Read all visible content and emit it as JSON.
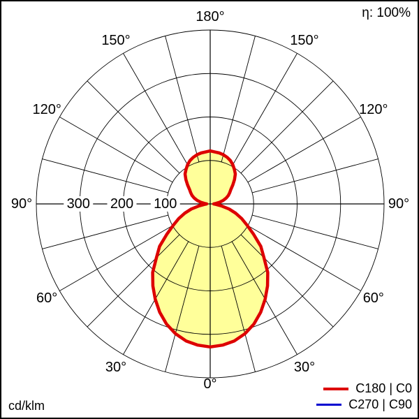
{
  "eta_label": "η: 100%",
  "unit_label": "cd/klm",
  "legend": {
    "items": [
      {
        "label": "C180 | C0",
        "color": "#dd0000"
      },
      {
        "label": "C270 | C90",
        "color": "#0000d0"
      }
    ]
  },
  "chart_data": {
    "type": "polar-photometric",
    "unit": "cd/klm",
    "efficiency_label": "η: 100%",
    "grid_color": "#000000",
    "background_color": "#ffffff",
    "angle_ticks_deg": [
      0,
      30,
      60,
      90,
      120,
      150,
      180
    ],
    "angle_tick_labels": [
      "0°",
      "30°",
      "60°",
      "90°",
      "120°",
      "150°",
      "180°"
    ],
    "labels_mirrored_both_sides": true,
    "spoke_step_deg": 15,
    "radial_ticks": [
      100,
      200,
      300
    ],
    "radial_tick_labels": [
      "100",
      "200",
      "300"
    ],
    "radial_max": 400,
    "series": [
      {
        "name": "C180 | C0",
        "color": "#dd0000",
        "fill": "#ffff9a",
        "symmetric": true,
        "gamma_deg": [
          0,
          5,
          10,
          15,
          20,
          25,
          30,
          35,
          40,
          45,
          50,
          55,
          60,
          65,
          70,
          75,
          80,
          85,
          90,
          95,
          100,
          105,
          110,
          115,
          120,
          125,
          130,
          135,
          140,
          145,
          150,
          155,
          160,
          165,
          170,
          175,
          180
        ],
        "values": [
          329,
          326,
          320,
          309,
          294,
          275,
          253,
          230,
          206,
          175,
          152,
          122,
          98,
          80,
          62,
          45,
          26,
          13,
          8,
          13,
          22,
          31,
          39,
          46,
          52,
          58,
          68,
          79,
          90,
          97,
          104,
          110,
          114,
          117,
          119,
          120,
          122
        ]
      },
      {
        "name": "C270 | C90",
        "color": "#0000d0",
        "fill": null,
        "symmetric": true,
        "gamma_deg": [
          0,
          5,
          10,
          15,
          20,
          25,
          30,
          35,
          40,
          45,
          50,
          55,
          60,
          65,
          70,
          75,
          80,
          85,
          90,
          95,
          100,
          105,
          110,
          115,
          120,
          125,
          130,
          135,
          140,
          145,
          150,
          155,
          160,
          165,
          170,
          175,
          180
        ],
        "values": [
          329,
          326,
          320,
          309,
          294,
          275,
          253,
          230,
          206,
          175,
          152,
          122,
          98,
          80,
          62,
          45,
          26,
          13,
          8,
          13,
          22,
          31,
          39,
          46,
          52,
          58,
          68,
          79,
          90,
          97,
          104,
          110,
          114,
          117,
          119,
          120,
          122
        ]
      }
    ]
  }
}
